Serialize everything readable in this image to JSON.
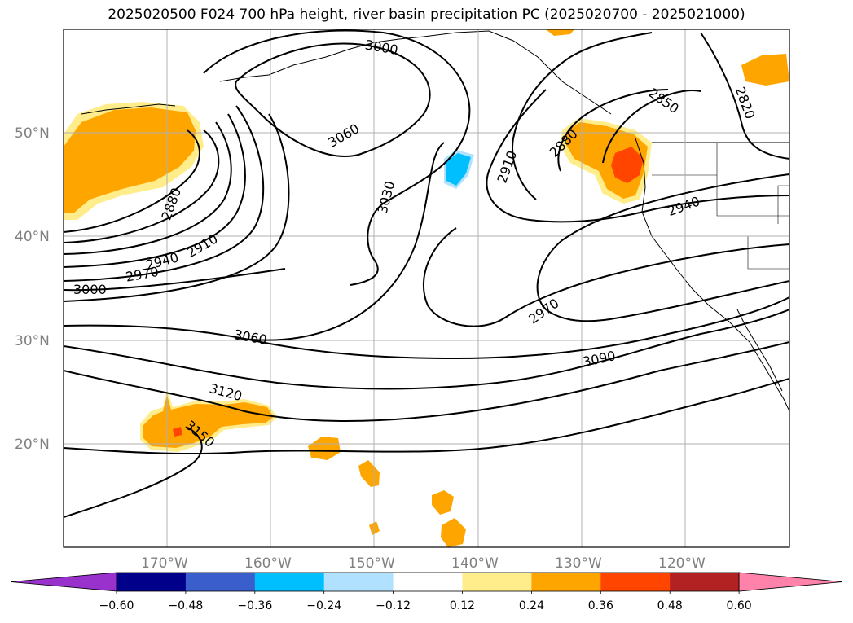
{
  "title": "2025020500 F024 700 hPa height, river basin precipitation PC (2025020700 - 2025021000)",
  "lat_labels": [
    "50°N",
    "40°N",
    "30°N",
    "20°N"
  ],
  "lon_labels": [
    "170°W",
    "160°W",
    "150°W",
    "140°W",
    "130°W",
    "120°W"
  ],
  "contour_labels": [
    "3000",
    "3060",
    "2910",
    "2880",
    "2850",
    "2820",
    "3030",
    "2940",
    "2970",
    "2910",
    "2940",
    "2970",
    "3000",
    "3060",
    "3090",
    "3120",
    "3150",
    "2880"
  ],
  "colorbar": {
    "ticks": [
      "−0.60",
      "−0.48",
      "−0.36",
      "−0.24",
      "−0.12",
      "0.12",
      "0.24",
      "0.36",
      "0.48",
      "0.60"
    ],
    "colors": [
      "#9932cc",
      "#00008b",
      "#3a5fcd",
      "#00bfff",
      "#b0e2ff",
      "#ffffff",
      "#ffec8b",
      "#ffa500",
      "#ff4500",
      "#b22222",
      "#ff82ab"
    ]
  }
}
